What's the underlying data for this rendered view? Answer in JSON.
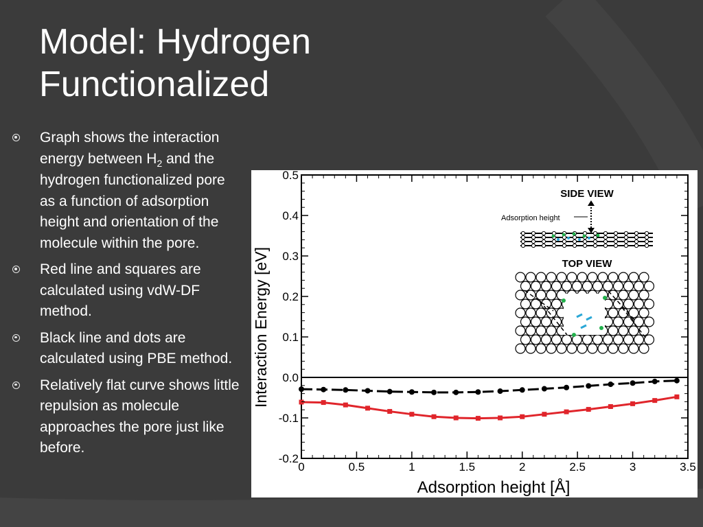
{
  "slide": {
    "title_line1": "Model: Hydrogen",
    "title_line2": "Functionalized",
    "bullets": [
      {
        "pre": "Graph shows the interaction energy between H",
        "sub": "2",
        "post": " and the hydrogen functionalized pore as a function of adsorption height and orientation of the molecule within the pore."
      },
      {
        "pre": "Red line and squares are calculated using vdW-DF method.",
        "sub": "",
        "post": ""
      },
      {
        "pre": "Black line and dots are calculated using PBE method.",
        "sub": "",
        "post": ""
      },
      {
        "pre": "Relatively flat curve shows little repulsion as molecule approaches the pore just like before.",
        "sub": "",
        "post": ""
      }
    ],
    "colors": {
      "background": "#3b3b3b",
      "text": "#ffffff",
      "vdw_df": "#e0252b",
      "pbe": "#000000"
    }
  },
  "chart_data": {
    "type": "line",
    "xlabel": "Adsorption height [Å]",
    "ylabel": "Interaction Energy [eV]",
    "xlim": [
      0,
      3.5
    ],
    "ylim": [
      -0.2,
      0.5
    ],
    "x_ticks": [
      0,
      0.5,
      1,
      1.5,
      2,
      2.5,
      3,
      3.5
    ],
    "x_tick_labels": [
      "0",
      "0.5",
      "1",
      "1.5",
      "2",
      "2.5",
      "3",
      "3.5"
    ],
    "y_ticks": [
      -0.2,
      -0.1,
      0.0,
      0.1,
      0.2,
      0.3,
      0.4,
      0.5
    ],
    "y_tick_labels": [
      "-0.2",
      "-0.1",
      "0.0",
      "0.1",
      "0.2",
      "0.3",
      "0.4",
      "0.5"
    ],
    "zero_line": true,
    "series": [
      {
        "color": "#e0252b",
        "marker": "square",
        "line": "solid",
        "x": [
          0,
          0.2,
          0.4,
          0.6,
          0.8,
          1.0,
          1.2,
          1.4,
          1.6,
          1.8,
          2.0,
          2.2,
          2.4,
          2.6,
          2.8,
          3.0,
          3.2,
          3.4
        ],
        "y": [
          -0.061,
          -0.062,
          -0.068,
          -0.076,
          -0.084,
          -0.091,
          -0.097,
          -0.1,
          -0.101,
          -0.1,
          -0.097,
          -0.091,
          -0.085,
          -0.079,
          -0.072,
          -0.065,
          -0.057,
          -0.048
        ]
      },
      {
        "color": "#000000",
        "marker": "circle",
        "line": "dashed",
        "x": [
          0,
          0.2,
          0.4,
          0.6,
          0.8,
          1.0,
          1.2,
          1.4,
          1.6,
          1.8,
          2.0,
          2.2,
          2.4,
          2.6,
          2.8,
          3.0,
          3.2,
          3.4
        ],
        "y": [
          -0.029,
          -0.03,
          -0.031,
          -0.033,
          -0.035,
          -0.036,
          -0.037,
          -0.037,
          -0.036,
          -0.034,
          -0.031,
          -0.028,
          -0.025,
          -0.021,
          -0.017,
          -0.014,
          -0.01,
          -0.008
        ]
      }
    ],
    "inset": {
      "side_view_label": "SIDE VIEW",
      "adsorption_label": "Adsorption height",
      "top_view_label": "TOP VIEW"
    }
  }
}
